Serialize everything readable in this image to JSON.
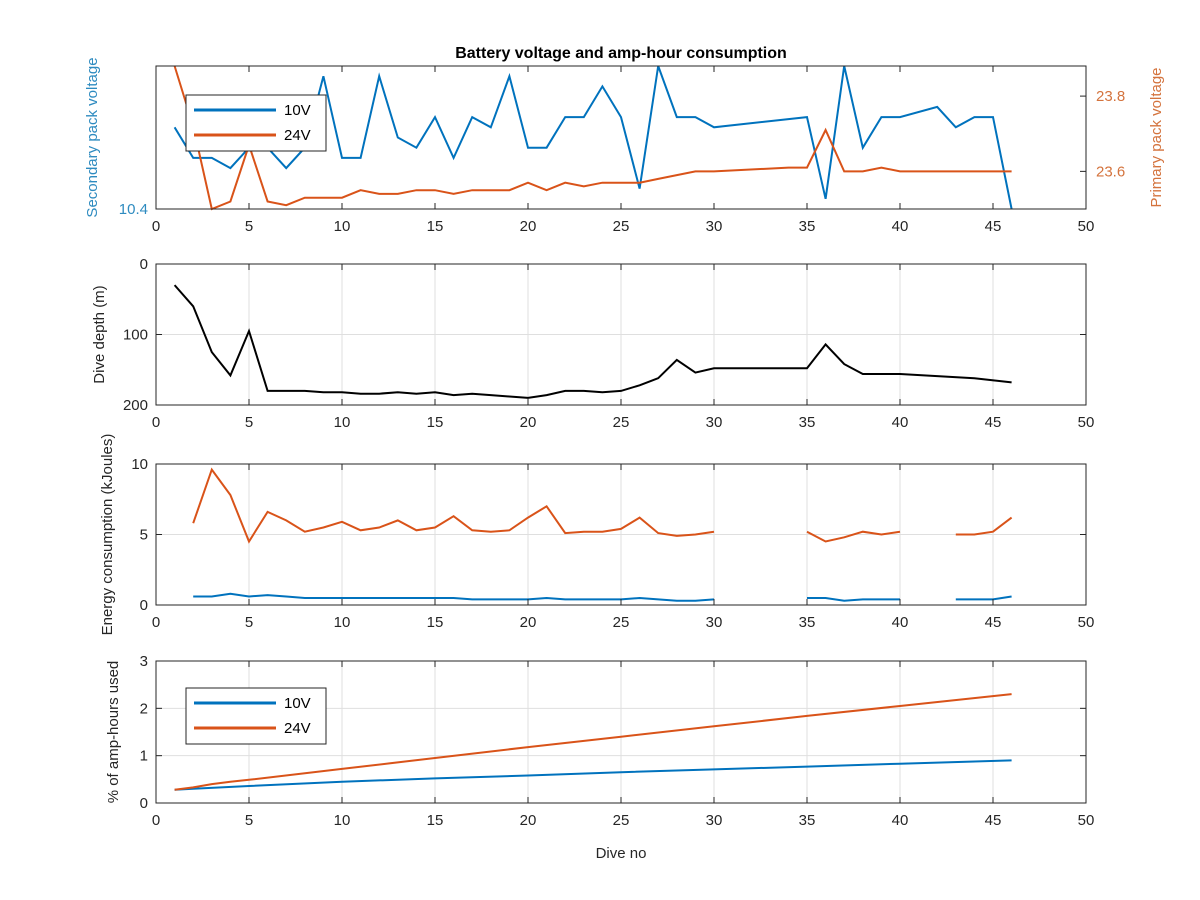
{
  "figure": {
    "title": "Battery voltage and amp-hour consumption",
    "xlabel": "Dive no"
  },
  "colors": {
    "blue": "#0072bd",
    "orange": "#d95319",
    "black": "#000000",
    "left_axis_1": "#2e8bc0",
    "right_axis_1": "#d4733d"
  },
  "chart_data": [
    {
      "type": "line",
      "title": "Battery voltage and amp-hour consumption",
      "xlabel": "",
      "ylabel": "Secondary pack voltage",
      "ylabel_right": "Primary pack voltage",
      "xlim": [
        0,
        50
      ],
      "xticks": [
        0,
        5,
        10,
        15,
        20,
        25,
        30,
        35,
        40,
        45,
        50
      ],
      "ylim": [
        10.4,
        10.54
      ],
      "yticks": [
        10.4
      ],
      "ytick_labels": [
        "10.4"
      ],
      "ylim_right": [
        23.5,
        23.88
      ],
      "yticks_right": [
        23.6,
        23.8
      ],
      "ytick_labels_right": [
        "23.6",
        "23.8"
      ],
      "grid": false,
      "legend": "top-left",
      "series": [
        {
          "name": "10V",
          "axis": "left",
          "color": "#0072bd",
          "points": [
            [
              1,
              10.48
            ],
            [
              2,
              10.45
            ],
            [
              3,
              10.45
            ],
            [
              4,
              10.44
            ],
            [
              5,
              10.46
            ],
            [
              6,
              10.46
            ],
            [
              7,
              10.44
            ],
            [
              8,
              10.46
            ],
            [
              9,
              10.53
            ],
            [
              10,
              10.45
            ],
            [
              11,
              10.45
            ],
            [
              12,
              10.53
            ],
            [
              13,
              10.47
            ],
            [
              14,
              10.46
            ],
            [
              15,
              10.49
            ],
            [
              16,
              10.45
            ],
            [
              17,
              10.49
            ],
            [
              18,
              10.48
            ],
            [
              19,
              10.53
            ],
            [
              20,
              10.46
            ],
            [
              21,
              10.46
            ],
            [
              22,
              10.49
            ],
            [
              23,
              10.49
            ],
            [
              24,
              10.52
            ],
            [
              25,
              10.49
            ],
            [
              26,
              10.42
            ],
            [
              27,
              10.54
            ],
            [
              28,
              10.49
            ],
            [
              29,
              10.49
            ],
            [
              30,
              10.48
            ],
            [
              35,
              10.49
            ],
            [
              36,
              10.41
            ],
            [
              37,
              10.54
            ],
            [
              38,
              10.46
            ],
            [
              39,
              10.49
            ],
            [
              40,
              10.49
            ],
            [
              42,
              10.5
            ],
            [
              43,
              10.48
            ],
            [
              44,
              10.49
            ],
            [
              45,
              10.49
            ],
            [
              46,
              10.4
            ]
          ]
        },
        {
          "name": "24V",
          "axis": "right",
          "color": "#d95319",
          "points": [
            [
              1,
              23.88
            ],
            [
              2,
              23.72
            ],
            [
              3,
              23.5
            ],
            [
              4,
              23.52
            ],
            [
              5,
              23.67
            ],
            [
              6,
              23.52
            ],
            [
              7,
              23.51
            ],
            [
              8,
              23.53
            ],
            [
              9,
              23.53
            ],
            [
              10,
              23.53
            ],
            [
              11,
              23.55
            ],
            [
              12,
              23.54
            ],
            [
              13,
              23.54
            ],
            [
              14,
              23.55
            ],
            [
              15,
              23.55
            ],
            [
              16,
              23.54
            ],
            [
              17,
              23.55
            ],
            [
              18,
              23.55
            ],
            [
              19,
              23.55
            ],
            [
              20,
              23.57
            ],
            [
              21,
              23.55
            ],
            [
              22,
              23.57
            ],
            [
              23,
              23.56
            ],
            [
              24,
              23.57
            ],
            [
              25,
              23.57
            ],
            [
              26,
              23.57
            ],
            [
              27,
              23.58
            ],
            [
              28,
              23.59
            ],
            [
              29,
              23.6
            ],
            [
              30,
              23.6
            ],
            [
              34,
              23.61
            ],
            [
              35,
              23.61
            ],
            [
              36,
              23.71
            ],
            [
              37,
              23.6
            ],
            [
              38,
              23.6
            ],
            [
              39,
              23.61
            ],
            [
              40,
              23.6
            ],
            [
              46,
              23.6
            ]
          ]
        }
      ]
    },
    {
      "type": "line",
      "title": "",
      "xlabel": "",
      "ylabel": "Dive depth (m)",
      "xlim": [
        0,
        50
      ],
      "xticks": [
        0,
        5,
        10,
        15,
        20,
        25,
        30,
        35,
        40,
        45,
        50
      ],
      "ylim": [
        0,
        200
      ],
      "y_reversed": true,
      "yticks": [
        0,
        100,
        200
      ],
      "ytick_labels": [
        "0",
        "100",
        "200"
      ],
      "grid": true,
      "series": [
        {
          "name": "",
          "color": "#000000",
          "points": [
            [
              1,
              30
            ],
            [
              2,
              60
            ],
            [
              3,
              125
            ],
            [
              4,
              158
            ],
            [
              5,
              95
            ],
            [
              6,
              180
            ],
            [
              7,
              180
            ],
            [
              8,
              180
            ],
            [
              9,
              182
            ],
            [
              10,
              182
            ],
            [
              11,
              184
            ],
            [
              12,
              184
            ],
            [
              13,
              182
            ],
            [
              14,
              184
            ],
            [
              15,
              182
            ],
            [
              16,
              186
            ],
            [
              17,
              184
            ],
            [
              18,
              186
            ],
            [
              19,
              188
            ],
            [
              20,
              190
            ],
            [
              21,
              186
            ],
            [
              22,
              180
            ],
            [
              23,
              180
            ],
            [
              24,
              182
            ],
            [
              25,
              180
            ],
            [
              26,
              172
            ],
            [
              27,
              162
            ],
            [
              28,
              136
            ],
            [
              29,
              154
            ],
            [
              30,
              148
            ],
            [
              31,
              148
            ],
            [
              35,
              148
            ],
            [
              36,
              114
            ],
            [
              37,
              142
            ],
            [
              38,
              156
            ],
            [
              39,
              156
            ],
            [
              40,
              156
            ],
            [
              44,
              162
            ],
            [
              46,
              168
            ]
          ]
        }
      ]
    },
    {
      "type": "line",
      "title": "",
      "xlabel": "",
      "ylabel": "Energy consumption (kJoules)",
      "xlim": [
        0,
        50
      ],
      "xticks": [
        0,
        5,
        10,
        15,
        20,
        25,
        30,
        35,
        40,
        45,
        50
      ],
      "ylim": [
        0,
        10
      ],
      "yticks": [
        0,
        5,
        10
      ],
      "ytick_labels": [
        "0",
        "5",
        "10"
      ],
      "grid": true,
      "series": [
        {
          "name": "10V",
          "color": "#0072bd",
          "segments": [
            [
              [
                2,
                0.6
              ],
              [
                3,
                0.6
              ],
              [
                4,
                0.8
              ],
              [
                5,
                0.6
              ],
              [
                6,
                0.7
              ],
              [
                7,
                0.6
              ],
              [
                8,
                0.5
              ],
              [
                9,
                0.5
              ],
              [
                10,
                0.5
              ],
              [
                11,
                0.5
              ],
              [
                12,
                0.5
              ],
              [
                13,
                0.5
              ],
              [
                14,
                0.5
              ],
              [
                15,
                0.5
              ],
              [
                16,
                0.5
              ],
              [
                17,
                0.4
              ],
              [
                18,
                0.4
              ],
              [
                19,
                0.4
              ],
              [
                20,
                0.4
              ],
              [
                21,
                0.5
              ],
              [
                22,
                0.4
              ],
              [
                23,
                0.4
              ],
              [
                24,
                0.4
              ],
              [
                25,
                0.4
              ],
              [
                26,
                0.5
              ],
              [
                27,
                0.4
              ],
              [
                28,
                0.3
              ],
              [
                29,
                0.3
              ],
              [
                30,
                0.4
              ]
            ],
            [
              [
                35,
                0.5
              ],
              [
                36,
                0.5
              ],
              [
                37,
                0.3
              ],
              [
                38,
                0.4
              ],
              [
                39,
                0.4
              ],
              [
                40,
                0.4
              ]
            ],
            [
              [
                43,
                0.4
              ],
              [
                44,
                0.4
              ],
              [
                45,
                0.4
              ],
              [
                46,
                0.6
              ]
            ]
          ]
        },
        {
          "name": "24V",
          "color": "#d95319",
          "segments": [
            [
              [
                2,
                5.8
              ],
              [
                3,
                9.6
              ],
              [
                4,
                7.8
              ],
              [
                5,
                4.5
              ],
              [
                6,
                6.6
              ],
              [
                7,
                6.0
              ],
              [
                8,
                5.2
              ],
              [
                9,
                5.5
              ],
              [
                10,
                5.9
              ],
              [
                11,
                5.3
              ],
              [
                12,
                5.5
              ],
              [
                13,
                6.0
              ],
              [
                14,
                5.3
              ],
              [
                15,
                5.5
              ],
              [
                16,
                6.3
              ],
              [
                17,
                5.3
              ],
              [
                18,
                5.2
              ],
              [
                19,
                5.3
              ],
              [
                20,
                6.2
              ],
              [
                21,
                7.0
              ],
              [
                22,
                5.1
              ],
              [
                23,
                5.2
              ],
              [
                24,
                5.2
              ],
              [
                25,
                5.4
              ],
              [
                26,
                6.2
              ],
              [
                27,
                5.1
              ],
              [
                28,
                4.9
              ],
              [
                29,
                5.0
              ],
              [
                30,
                5.2
              ]
            ],
            [
              [
                35,
                5.2
              ],
              [
                36,
                4.5
              ],
              [
                37,
                4.8
              ],
              [
                38,
                5.2
              ],
              [
                39,
                5.0
              ],
              [
                40,
                5.2
              ]
            ],
            [
              [
                43,
                5.0
              ],
              [
                44,
                5.0
              ],
              [
                45,
                5.2
              ],
              [
                46,
                6.2
              ]
            ]
          ]
        }
      ]
    },
    {
      "type": "line",
      "title": "",
      "xlabel": "Dive no",
      "ylabel": "% of amp-hours used",
      "xlim": [
        0,
        50
      ],
      "xticks": [
        0,
        5,
        10,
        15,
        20,
        25,
        30,
        35,
        40,
        45,
        50
      ],
      "ylim": [
        0,
        3
      ],
      "yticks": [
        0,
        1,
        2,
        3
      ],
      "ytick_labels": [
        "0",
        "1",
        "2",
        "3"
      ],
      "grid": true,
      "legend": "top-left",
      "series": [
        {
          "name": "10V",
          "color": "#0072bd",
          "points": [
            [
              1,
              0.28
            ],
            [
              2,
              0.3
            ],
            [
              5,
              0.36
            ],
            [
              10,
              0.45
            ],
            [
              15,
              0.52
            ],
            [
              20,
              0.58
            ],
            [
              25,
              0.65
            ],
            [
              30,
              0.71
            ],
            [
              35,
              0.77
            ],
            [
              40,
              0.83
            ],
            [
              46,
              0.9
            ]
          ]
        },
        {
          "name": "24V",
          "color": "#d95319",
          "points": [
            [
              1,
              0.28
            ],
            [
              2,
              0.33
            ],
            [
              3,
              0.4
            ],
            [
              4,
              0.45
            ],
            [
              5,
              0.49
            ],
            [
              10,
              0.72
            ],
            [
              15,
              0.95
            ],
            [
              20,
              1.18
            ],
            [
              25,
              1.4
            ],
            [
              30,
              1.62
            ],
            [
              35,
              1.84
            ],
            [
              40,
              2.05
            ],
            [
              46,
              2.3
            ]
          ]
        }
      ]
    }
  ]
}
